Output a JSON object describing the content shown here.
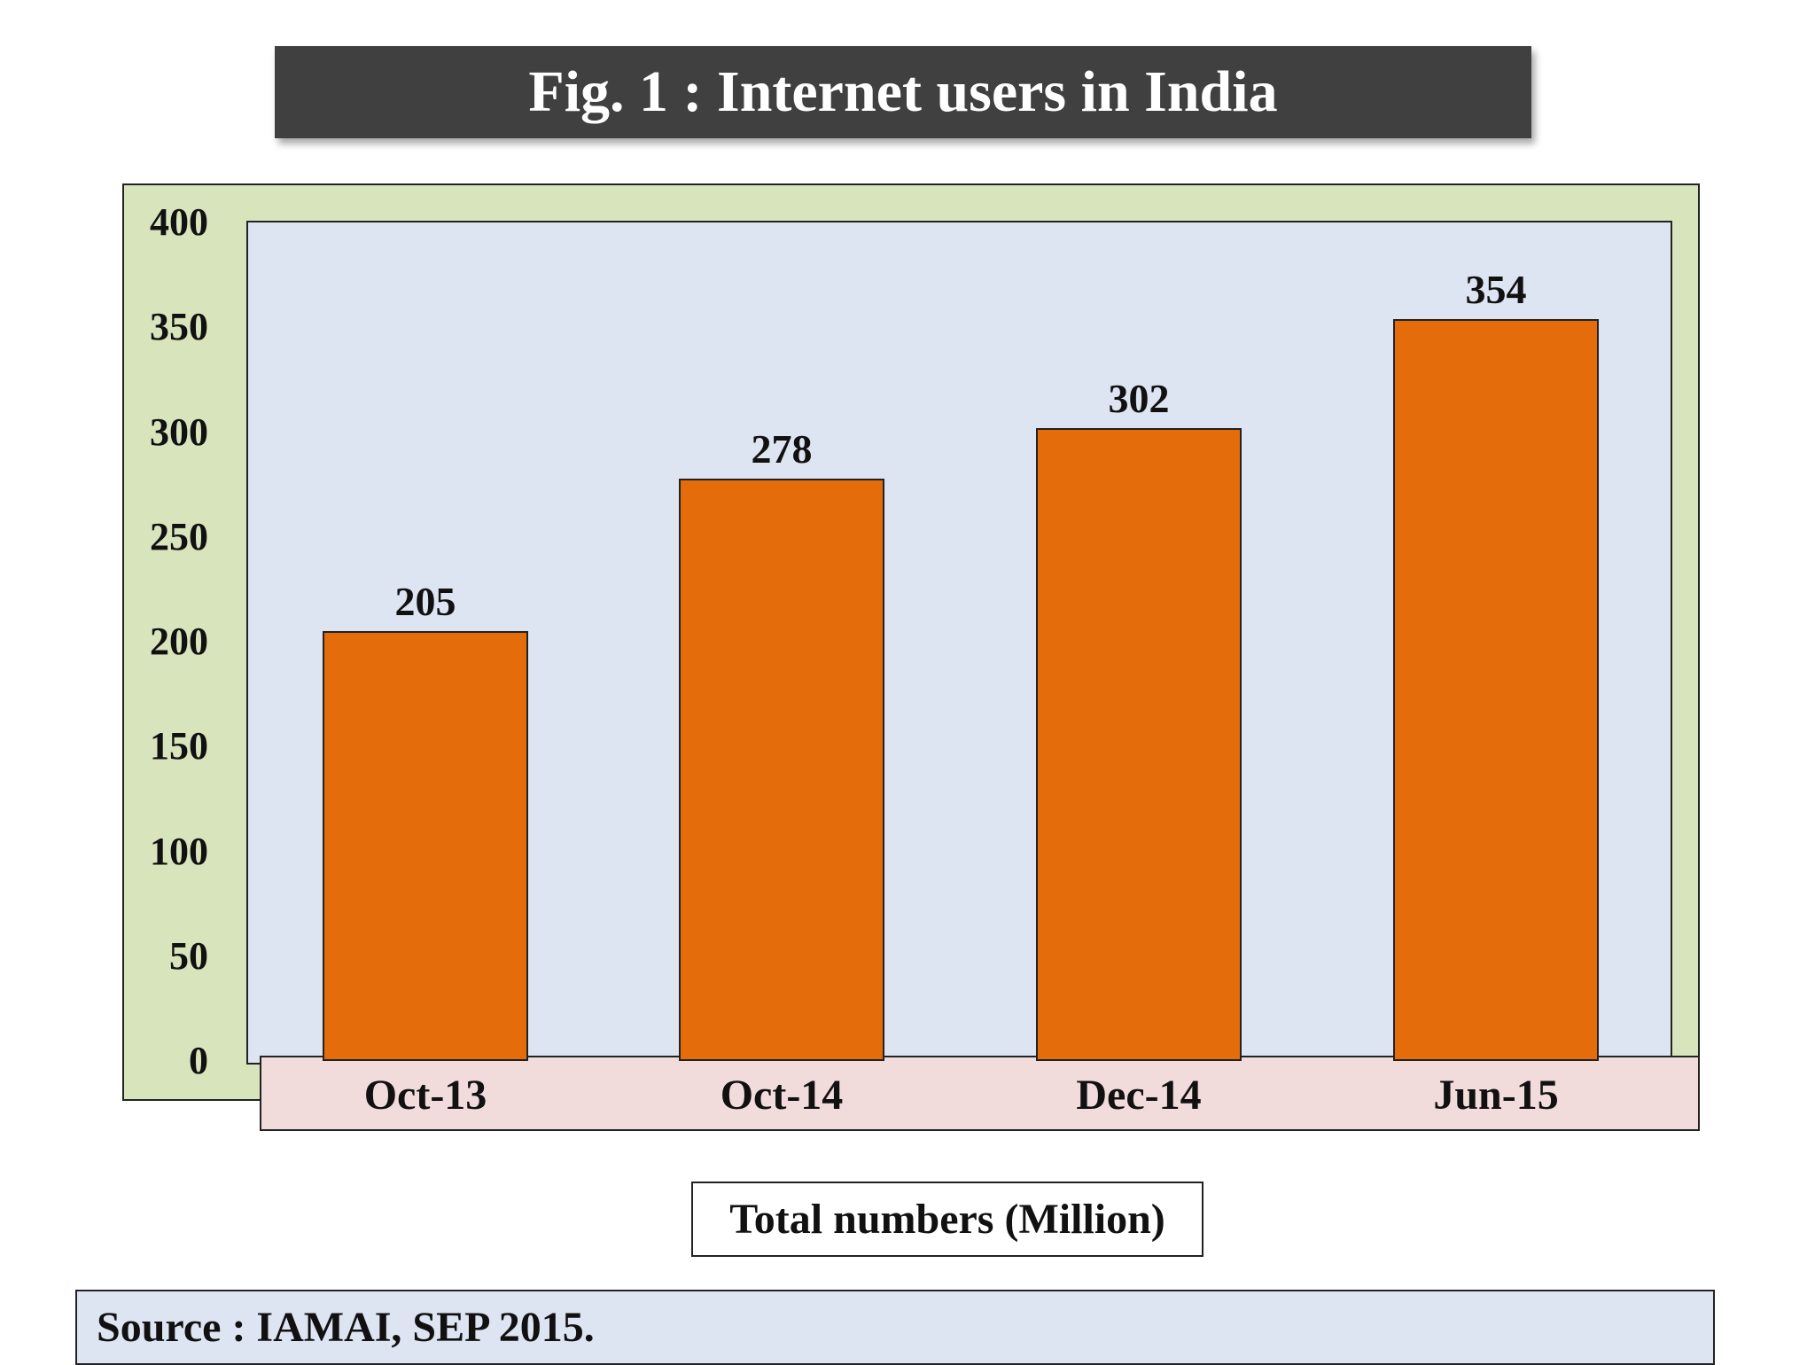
{
  "title": "Fig. 1 : Internet users in India",
  "unit_label": "Total numbers (Million)",
  "source": "Source : IAMAI, SEP 2015.",
  "colors": {
    "bar": "#e46c0a",
    "plot_background": "#dde4f2",
    "outer_background": "#d8e4bc",
    "axis_strip": "#f2dcdb",
    "title_background": "#404040"
  },
  "chart_data": {
    "type": "bar",
    "title": "Fig. 1 : Internet users in India",
    "categories": [
      "Oct-13",
      "Oct-14",
      "Dec-14",
      "Jun-15"
    ],
    "values": [
      205,
      278,
      302,
      354
    ],
    "data_labels": [
      "205",
      "278",
      "302",
      "354"
    ],
    "yticks": [
      "0",
      "50",
      "100",
      "150",
      "200",
      "250",
      "300",
      "350",
      "400"
    ],
    "ylim": [
      0,
      400
    ],
    "xlabel": "",
    "ylabel": "",
    "grid": false,
    "legend": "none"
  }
}
